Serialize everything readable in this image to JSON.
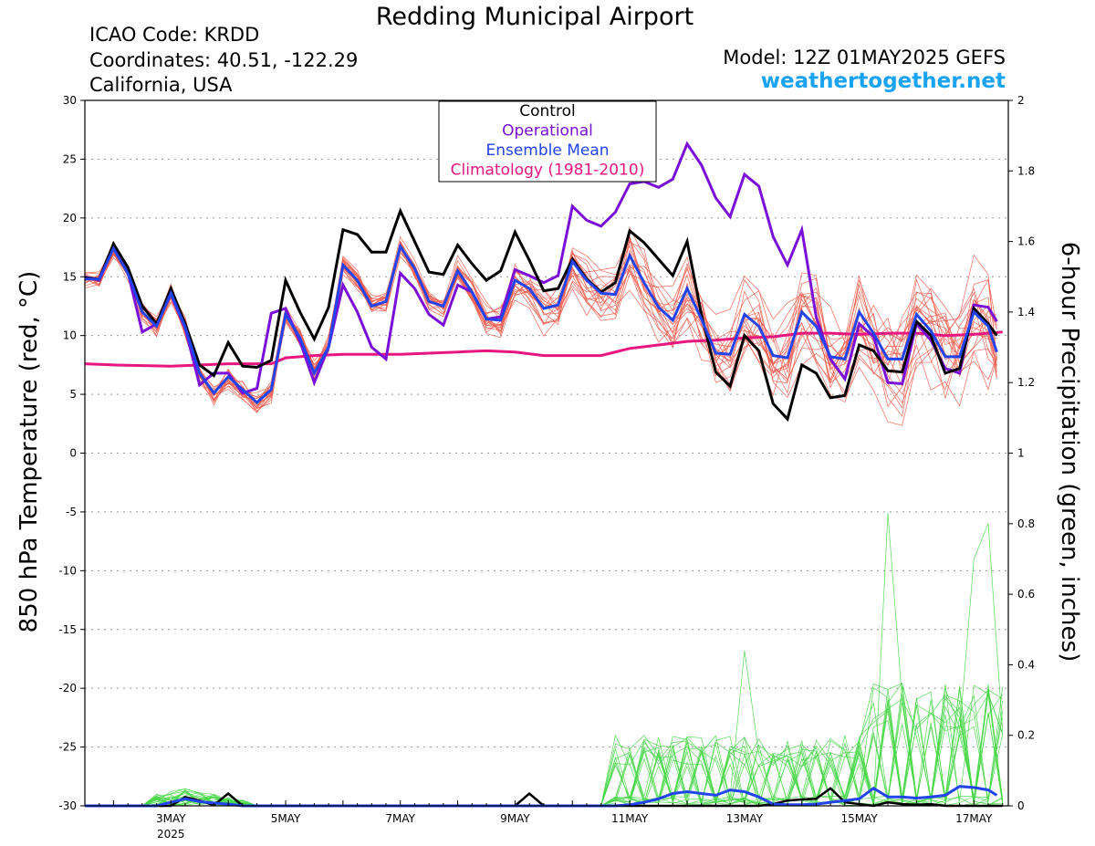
{
  "header": {
    "title": "Redding Municipal Airport",
    "icao": "ICAO Code: KRDD",
    "coords": "Coordinates: 40.51, -122.29",
    "region": "California, USA",
    "model": "Model: 12Z 01MAY2025 GEFS",
    "site": "weathertogether.net"
  },
  "colors": {
    "control": "#000000",
    "operational": "#7a10d8",
    "ensemble_mean": "#2244ee",
    "climatology": "#e8167f",
    "members_temp": "#f25a4a",
    "members_precip": "#44d644",
    "site": "#1aa3f0"
  },
  "chart_data": {
    "type": "line",
    "ylabel_left": "850 hPa Temperature (red, °C)",
    "ylabel_right": "6-hour Precipitation (green, inches)",
    "x_unit": "days since 1 May 2025 00Z",
    "xlim": [
      0.5,
      16.6
    ],
    "ylim_left": [
      -30,
      30
    ],
    "ylim_right": [
      0,
      2
    ],
    "yticks_left": [
      30,
      25,
      20,
      15,
      10,
      5,
      0,
      -5,
      -10,
      -15,
      -20,
      -25,
      -30
    ],
    "yticks_right": [
      2,
      1.8,
      1.6,
      1.4,
      1.2,
      1,
      0.8,
      0.6,
      0.4,
      0.2,
      0
    ],
    "x_ticks": [
      {
        "x": 2,
        "label": "3MAY",
        "sub": "2025"
      },
      {
        "x": 4,
        "label": "5MAY",
        "sub": ""
      },
      {
        "x": 6,
        "label": "7MAY",
        "sub": ""
      },
      {
        "x": 8,
        "label": "9MAY",
        "sub": ""
      },
      {
        "x": 10,
        "label": "11MAY",
        "sub": ""
      },
      {
        "x": 12,
        "label": "13MAY",
        "sub": ""
      },
      {
        "x": 14,
        "label": "15MAY",
        "sub": ""
      },
      {
        "x": 16,
        "label": "17MAY",
        "sub": ""
      }
    ],
    "grid": true,
    "legend": {
      "position": "top-center",
      "entries": [
        {
          "label": "Control",
          "color": "#000000"
        },
        {
          "label": "Operational",
          "color": "#7a10d8"
        },
        {
          "label": "Ensemble Mean",
          "color": "#2244ee"
        },
        {
          "label": "Climatology (1981-2010)",
          "color": "#e8167f"
        }
      ]
    },
    "temperature": {
      "control": [
        [
          0.5,
          14.9
        ],
        [
          0.75,
          14.8
        ],
        [
          1.0,
          17.8
        ],
        [
          1.25,
          15.8
        ],
        [
          1.5,
          12.5
        ],
        [
          1.75,
          11.0
        ],
        [
          2.0,
          14.0
        ],
        [
          2.25,
          11.0
        ],
        [
          2.5,
          7.5
        ],
        [
          2.75,
          6.6
        ],
        [
          3.0,
          9.4
        ],
        [
          3.25,
          7.4
        ],
        [
          3.5,
          7.3
        ],
        [
          3.75,
          7.9
        ],
        [
          4.0,
          14.7
        ],
        [
          4.25,
          12.0
        ],
        [
          4.5,
          9.7
        ],
        [
          4.75,
          12.4
        ],
        [
          5.0,
          19.0
        ],
        [
          5.25,
          18.6
        ],
        [
          5.5,
          17.1
        ],
        [
          5.75,
          17.1
        ],
        [
          6.0,
          20.6
        ],
        [
          6.25,
          18.0
        ],
        [
          6.5,
          15.4
        ],
        [
          6.75,
          15.2
        ],
        [
          7.0,
          17.7
        ],
        [
          7.25,
          16.1
        ],
        [
          7.5,
          14.7
        ],
        [
          7.75,
          15.5
        ],
        [
          8.0,
          18.8
        ],
        [
          8.25,
          16.4
        ],
        [
          8.5,
          13.8
        ],
        [
          8.75,
          14.0
        ],
        [
          9.0,
          16.5
        ],
        [
          9.25,
          14.8
        ],
        [
          9.5,
          13.7
        ],
        [
          9.75,
          14.5
        ],
        [
          10.0,
          18.9
        ],
        [
          10.25,
          17.9
        ],
        [
          10.5,
          16.5
        ],
        [
          10.75,
          15.1
        ],
        [
          11.0,
          18.0
        ],
        [
          11.25,
          11.8
        ],
        [
          11.5,
          6.9
        ],
        [
          11.75,
          5.7
        ],
        [
          12.0,
          10.0
        ],
        [
          12.25,
          8.7
        ],
        [
          12.5,
          4.2
        ],
        [
          12.75,
          2.9
        ],
        [
          13.0,
          7.5
        ],
        [
          13.25,
          6.8
        ],
        [
          13.5,
          4.7
        ],
        [
          13.75,
          4.9
        ],
        [
          14.0,
          9.2
        ],
        [
          14.25,
          8.7
        ],
        [
          14.5,
          7.0
        ],
        [
          14.75,
          6.9
        ],
        [
          15.0,
          11.2
        ],
        [
          15.25,
          10.0
        ],
        [
          15.5,
          6.8
        ],
        [
          15.75,
          7.2
        ],
        [
          16.0,
          12.3
        ],
        [
          16.25,
          11.0
        ],
        [
          16.4,
          10.0
        ]
      ],
      "operational": [
        [
          0.5,
          15.0
        ],
        [
          0.75,
          14.7
        ],
        [
          1.0,
          17.5
        ],
        [
          1.25,
          15.4
        ],
        [
          1.5,
          10.3
        ],
        [
          1.75,
          11.0
        ],
        [
          2.0,
          13.5
        ],
        [
          2.25,
          10.6
        ],
        [
          2.5,
          5.8
        ],
        [
          2.75,
          6.8
        ],
        [
          3.0,
          6.8
        ],
        [
          3.25,
          5.1
        ],
        [
          3.5,
          5.5
        ],
        [
          3.75,
          11.9
        ],
        [
          4.0,
          12.3
        ],
        [
          4.25,
          9.5
        ],
        [
          4.5,
          6.0
        ],
        [
          4.75,
          9.0
        ],
        [
          5.0,
          14.3
        ],
        [
          5.25,
          12.0
        ],
        [
          5.5,
          9.0
        ],
        [
          5.75,
          8.0
        ],
        [
          6.0,
          15.3
        ],
        [
          6.25,
          14.0
        ],
        [
          6.5,
          11.8
        ],
        [
          6.75,
          10.9
        ],
        [
          7.0,
          14.3
        ],
        [
          7.25,
          13.7
        ],
        [
          7.5,
          11.4
        ],
        [
          7.75,
          11.6
        ],
        [
          8.0,
          15.6
        ],
        [
          8.25,
          15.1
        ],
        [
          8.5,
          14.5
        ],
        [
          8.75,
          15.1
        ],
        [
          9.0,
          21.0
        ],
        [
          9.25,
          19.8
        ],
        [
          9.5,
          19.3
        ],
        [
          9.75,
          20.5
        ],
        [
          10.0,
          22.9
        ],
        [
          10.25,
          23.1
        ],
        [
          10.5,
          22.6
        ],
        [
          10.75,
          23.3
        ],
        [
          11.0,
          26.3
        ],
        [
          11.25,
          24.5
        ],
        [
          11.5,
          21.7
        ],
        [
          11.75,
          20.1
        ],
        [
          12.0,
          23.7
        ],
        [
          12.25,
          22.7
        ],
        [
          12.5,
          18.4
        ],
        [
          12.75,
          16.0
        ],
        [
          13.0,
          19.0
        ],
        [
          13.25,
          11.6
        ],
        [
          13.5,
          8.0
        ],
        [
          13.75,
          6.3
        ],
        [
          14.0,
          11.0
        ],
        [
          14.25,
          9.9
        ],
        [
          14.5,
          6.0
        ],
        [
          14.75,
          5.9
        ],
        [
          15.0,
          11.0
        ],
        [
          15.25,
          9.6
        ],
        [
          15.5,
          7.2
        ],
        [
          15.75,
          6.8
        ],
        [
          16.0,
          12.6
        ],
        [
          16.25,
          12.4
        ],
        [
          16.4,
          11.2
        ]
      ],
      "ensemble_mean": [
        [
          0.5,
          14.8
        ],
        [
          0.75,
          14.8
        ],
        [
          1.0,
          17.4
        ],
        [
          1.25,
          15.3
        ],
        [
          1.5,
          12.0
        ],
        [
          1.75,
          10.8
        ],
        [
          2.0,
          13.6
        ],
        [
          2.25,
          10.7
        ],
        [
          2.5,
          6.8
        ],
        [
          2.75,
          5.1
        ],
        [
          3.0,
          6.5
        ],
        [
          3.25,
          5.4
        ],
        [
          3.5,
          4.3
        ],
        [
          3.75,
          5.4
        ],
        [
          4.0,
          11.8
        ],
        [
          4.25,
          9.8
        ],
        [
          4.5,
          6.8
        ],
        [
          4.75,
          9.0
        ],
        [
          5.0,
          16.0
        ],
        [
          5.25,
          14.7
        ],
        [
          5.5,
          12.5
        ],
        [
          5.75,
          12.9
        ],
        [
          6.0,
          17.6
        ],
        [
          6.25,
          15.7
        ],
        [
          6.5,
          12.9
        ],
        [
          6.75,
          12.5
        ],
        [
          7.0,
          15.5
        ],
        [
          7.25,
          13.7
        ],
        [
          7.5,
          11.4
        ],
        [
          7.75,
          11.3
        ],
        [
          8.0,
          14.7
        ],
        [
          8.25,
          14.0
        ],
        [
          8.5,
          12.3
        ],
        [
          8.75,
          12.6
        ],
        [
          9.0,
          16.3
        ],
        [
          9.25,
          14.7
        ],
        [
          9.5,
          13.6
        ],
        [
          9.75,
          13.5
        ],
        [
          10.0,
          16.8
        ],
        [
          10.25,
          14.5
        ],
        [
          10.5,
          12.4
        ],
        [
          10.75,
          11.3
        ],
        [
          11.0,
          14.0
        ],
        [
          11.25,
          11.4
        ],
        [
          11.5,
          8.5
        ],
        [
          11.75,
          8.4
        ],
        [
          12.0,
          11.8
        ],
        [
          12.25,
          10.8
        ],
        [
          12.5,
          8.3
        ],
        [
          12.75,
          8.1
        ],
        [
          13.0,
          12.0
        ],
        [
          13.25,
          10.8
        ],
        [
          13.5,
          8.2
        ],
        [
          13.75,
          8.0
        ],
        [
          14.0,
          12.0
        ],
        [
          14.25,
          10.2
        ],
        [
          14.5,
          8.0
        ],
        [
          14.75,
          8.0
        ],
        [
          15.0,
          11.8
        ],
        [
          15.25,
          10.4
        ],
        [
          15.5,
          8.2
        ],
        [
          15.75,
          8.2
        ],
        [
          16.0,
          12.0
        ],
        [
          16.25,
          10.8
        ],
        [
          16.4,
          8.6
        ]
      ],
      "climatology": [
        [
          0.5,
          7.6
        ],
        [
          1.0,
          7.5
        ],
        [
          2.0,
          7.4
        ],
        [
          3.0,
          7.6
        ],
        [
          3.75,
          7.6
        ],
        [
          4.0,
          8.1
        ],
        [
          4.5,
          8.3
        ],
        [
          5.0,
          8.4
        ],
        [
          6.0,
          8.4
        ],
        [
          7.0,
          8.6
        ],
        [
          7.5,
          8.7
        ],
        [
          8.0,
          8.6
        ],
        [
          8.5,
          8.3
        ],
        [
          9.0,
          8.3
        ],
        [
          9.5,
          8.3
        ],
        [
          10.0,
          8.9
        ],
        [
          10.5,
          9.2
        ],
        [
          11.0,
          9.5
        ],
        [
          11.5,
          9.6
        ],
        [
          12.0,
          9.8
        ],
        [
          12.5,
          9.9
        ],
        [
          13.0,
          10.2
        ],
        [
          13.5,
          10.2
        ],
        [
          14.0,
          10.1
        ],
        [
          14.5,
          10.2
        ],
        [
          15.0,
          10.2
        ],
        [
          15.5,
          10.0
        ],
        [
          16.0,
          10.1
        ],
        [
          16.5,
          10.3
        ]
      ]
    },
    "precipitation": {
      "control": [
        [
          0.5,
          0
        ],
        [
          2.0,
          0
        ],
        [
          2.25,
          0.025
        ],
        [
          2.5,
          0.015
        ],
        [
          2.75,
          0.002
        ],
        [
          3.0,
          0.035
        ],
        [
          3.25,
          0
        ],
        [
          8.0,
          0
        ],
        [
          8.25,
          0.035
        ],
        [
          8.5,
          0
        ],
        [
          10.0,
          0
        ],
        [
          10.5,
          0
        ],
        [
          11.0,
          0
        ],
        [
          12.25,
          0
        ],
        [
          12.5,
          0.005
        ],
        [
          12.75,
          0.015
        ],
        [
          13.0,
          0.018
        ],
        [
          13.25,
          0.02
        ],
        [
          13.5,
          0.05
        ],
        [
          13.75,
          0.01
        ],
        [
          14.0,
          0.005
        ],
        [
          14.25,
          0
        ],
        [
          14.5,
          0.01
        ],
        [
          14.75,
          0.005
        ],
        [
          15.0,
          0.003
        ],
        [
          15.25,
          0.005
        ],
        [
          15.5,
          0
        ],
        [
          16.0,
          0
        ],
        [
          16.5,
          0
        ]
      ],
      "ensemble_mean": [
        [
          0.5,
          0
        ],
        [
          1.75,
          0
        ],
        [
          2.0,
          0.01
        ],
        [
          2.25,
          0.02
        ],
        [
          2.5,
          0.012
        ],
        [
          2.75,
          0.008
        ],
        [
          3.0,
          0.005
        ],
        [
          3.25,
          0
        ],
        [
          9.75,
          0
        ],
        [
          10.0,
          0.003
        ],
        [
          10.25,
          0.01
        ],
        [
          10.5,
          0.02
        ],
        [
          10.75,
          0.035
        ],
        [
          11.0,
          0.04
        ],
        [
          11.25,
          0.035
        ],
        [
          11.5,
          0.03
        ],
        [
          11.75,
          0.045
        ],
        [
          12.0,
          0.04
        ],
        [
          12.25,
          0.025
        ],
        [
          12.5,
          0.005
        ],
        [
          12.75,
          0.003
        ],
        [
          13.0,
          0.003
        ],
        [
          13.25,
          0.005
        ],
        [
          13.5,
          0.01
        ],
        [
          13.75,
          0.015
        ],
        [
          14.0,
          0.02
        ],
        [
          14.25,
          0.05
        ],
        [
          14.5,
          0.025
        ],
        [
          14.75,
          0.025
        ],
        [
          15.0,
          0.022
        ],
        [
          15.25,
          0.025
        ],
        [
          15.5,
          0.03
        ],
        [
          15.75,
          0.055
        ],
        [
          16.0,
          0.052
        ],
        [
          16.25,
          0.045
        ],
        [
          16.4,
          0.03
        ]
      ]
    }
  }
}
